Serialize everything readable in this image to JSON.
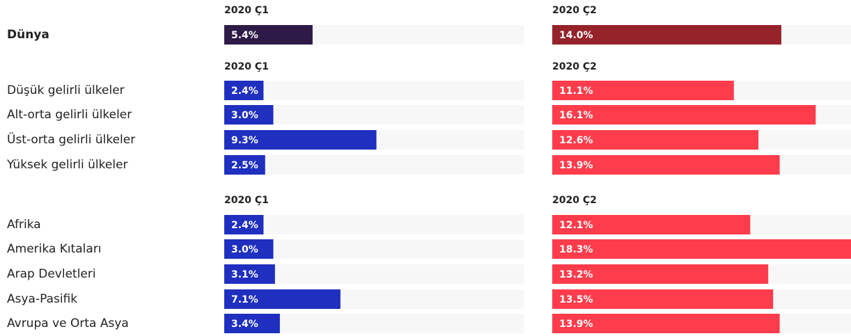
{
  "chart_data": {
    "type": "bar-table",
    "groups": [
      {
        "columns": [
          "2020 Ç1",
          "2020 Ç2"
        ],
        "colors": [
          "#2e1a47",
          "#96222a"
        ],
        "rows": [
          {
            "label": "Dünya",
            "values": [
              5.4,
              14.0
            ],
            "value_labels": [
              "5.4%",
              "14.0%"
            ]
          }
        ]
      },
      {
        "columns": [
          "2020 Ç1",
          "2020 Ç2"
        ],
        "colors": [
          "#1f2fbf",
          "#ff3c4b"
        ],
        "rows": [
          {
            "label": "Düşük gelirli ülkeler",
            "values": [
              2.4,
              11.1
            ],
            "value_labels": [
              "2.4%",
              "11.1%"
            ]
          },
          {
            "label": "Alt-orta gelirli ülkeler",
            "values": [
              3.0,
              16.1
            ],
            "value_labels": [
              "3.0%",
              "16.1%"
            ]
          },
          {
            "label": "Üst-orta gelirli ülkeler",
            "values": [
              9.3,
              12.6
            ],
            "value_labels": [
              "9.3%",
              "12.6%"
            ]
          },
          {
            "label": "Yüksek gelirli ülkeler",
            "values": [
              2.5,
              13.9
            ],
            "value_labels": [
              "2.5%",
              "13.9%"
            ]
          }
        ]
      },
      {
        "columns": [
          "2020 Ç1",
          "2020 Ç2"
        ],
        "colors": [
          "#1f2fbf",
          "#ff3c4b"
        ],
        "rows": [
          {
            "label": "Afrika",
            "values": [
              2.4,
              12.1
            ],
            "value_labels": [
              "2.4%",
              "12.1%"
            ]
          },
          {
            "label": "Amerika Kıtaları",
            "values": [
              3.0,
              18.3
            ],
            "value_labels": [
              "3.0%",
              "18.3%"
            ]
          },
          {
            "label": "Arap Devletleri",
            "values": [
              3.1,
              13.2
            ],
            "value_labels": [
              "3.1%",
              "13.2%"
            ]
          },
          {
            "label": "Asya-Pasifik",
            "values": [
              7.1,
              13.5
            ],
            "value_labels": [
              "7.1%",
              "13.5%"
            ]
          },
          {
            "label": "Avrupa ve Orta Asya",
            "values": [
              3.4,
              13.9
            ],
            "value_labels": [
              "3.4%",
              "13.9%"
            ]
          }
        ]
      }
    ]
  }
}
